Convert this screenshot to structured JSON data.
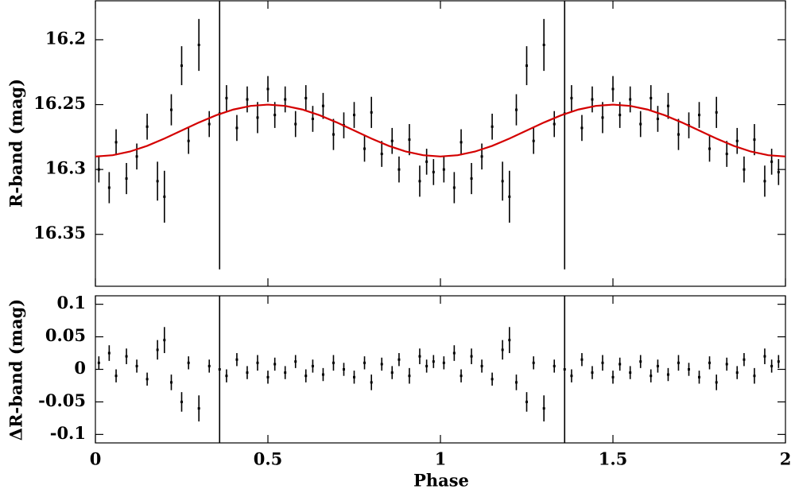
{
  "chart_data": [
    {
      "type": "errorbar",
      "ylabel": "R-band (mag)",
      "invert_y": true,
      "xlim": [
        0,
        2
      ],
      "ylim": [
        16.17,
        16.39
      ],
      "yticks": [
        16.2,
        16.25,
        16.3,
        16.35
      ],
      "color": "#000000",
      "fit_color": "#d40000",
      "x": [
        0.01,
        0.04,
        0.06,
        0.09,
        0.12,
        0.15,
        0.18,
        0.2,
        0.22,
        0.25,
        0.27,
        0.3,
        0.33,
        0.36,
        0.38,
        0.41,
        0.44,
        0.47,
        0.5,
        0.52,
        0.55,
        0.58,
        0.61,
        0.63,
        0.66,
        0.69,
        0.72,
        0.75,
        0.78,
        0.8,
        0.83,
        0.86,
        0.88,
        0.91,
        0.94,
        0.96,
        0.98,
        1.01,
        1.04,
        1.06,
        1.09,
        1.12,
        1.15,
        1.18,
        1.2,
        1.22,
        1.25,
        1.27,
        1.3,
        1.33,
        1.36,
        1.38,
        1.41,
        1.44,
        1.47,
        1.5,
        1.52,
        1.55,
        1.58,
        1.61,
        1.63,
        1.66,
        1.69,
        1.72,
        1.75,
        1.78,
        1.8,
        1.83,
        1.86,
        1.88,
        1.91,
        1.94,
        1.96,
        1.98
      ],
      "values": [
        16.3,
        16.314,
        16.279,
        16.307,
        16.29,
        16.267,
        16.309,
        16.321,
        16.254,
        16.22,
        16.278,
        16.204,
        16.265,
        16.257,
        16.245,
        16.268,
        16.246,
        16.26,
        16.238,
        16.258,
        16.246,
        16.265,
        16.245,
        16.261,
        16.251,
        16.273,
        16.266,
        16.258,
        16.284,
        16.256,
        16.288,
        16.278,
        16.3,
        16.277,
        16.309,
        16.294,
        16.302,
        16.3,
        16.314,
        16.279,
        16.307,
        16.29,
        16.267,
        16.309,
        16.321,
        16.254,
        16.22,
        16.278,
        16.204,
        16.265,
        16.257,
        16.245,
        16.268,
        16.246,
        16.26,
        16.238,
        16.258,
        16.246,
        16.265,
        16.245,
        16.261,
        16.251,
        16.273,
        16.266,
        16.258,
        16.284,
        16.256,
        16.288,
        16.278,
        16.3,
        16.277,
        16.309,
        16.294,
        16.302
      ],
      "errors": [
        0.01,
        0.012,
        0.01,
        0.012,
        0.01,
        0.01,
        0.015,
        0.02,
        0.012,
        0.015,
        0.01,
        0.02,
        0.01,
        0.12,
        0.01,
        0.01,
        0.01,
        0.012,
        0.01,
        0.01,
        0.01,
        0.01,
        0.01,
        0.01,
        0.01,
        0.012,
        0.01,
        0.01,
        0.01,
        0.012,
        0.01,
        0.01,
        0.01,
        0.012,
        0.012,
        0.01,
        0.01,
        0.01,
        0.012,
        0.01,
        0.012,
        0.01,
        0.01,
        0.015,
        0.02,
        0.012,
        0.015,
        0.01,
        0.02,
        0.01,
        0.12,
        0.01,
        0.01,
        0.01,
        0.012,
        0.01,
        0.01,
        0.01,
        0.01,
        0.01,
        0.01,
        0.01,
        0.012,
        0.01,
        0.01,
        0.01,
        0.012,
        0.01,
        0.01,
        0.01,
        0.012,
        0.012,
        0.01,
        0.01
      ],
      "fit_x": [
        0,
        0.05,
        0.1,
        0.15,
        0.2,
        0.25,
        0.3,
        0.35,
        0.4,
        0.45,
        0.5,
        0.55,
        0.6,
        0.65,
        0.7,
        0.75,
        0.8,
        0.85,
        0.9,
        0.95,
        1,
        1.05,
        1.1,
        1.15,
        1.2,
        1.25,
        1.3,
        1.35,
        1.4,
        1.45,
        1.5,
        1.55,
        1.6,
        1.65,
        1.7,
        1.75,
        1.8,
        1.85,
        1.9,
        1.95,
        2
      ],
      "fit_values": [
        16.29,
        16.289,
        16.2862,
        16.2818,
        16.2762,
        16.27,
        16.2638,
        16.2582,
        16.2538,
        16.251,
        16.25,
        16.251,
        16.2538,
        16.2582,
        16.2638,
        16.27,
        16.2762,
        16.2818,
        16.2862,
        16.289,
        16.29,
        16.289,
        16.2862,
        16.2818,
        16.2762,
        16.27,
        16.2638,
        16.2582,
        16.2538,
        16.251,
        16.25,
        16.251,
        16.2538,
        16.2582,
        16.2638,
        16.27,
        16.2762,
        16.2818,
        16.2862,
        16.289,
        16.29
      ]
    },
    {
      "type": "errorbar",
      "ylabel": "ΔR-band (mag)",
      "xlabel": "Phase",
      "xlim": [
        0,
        2
      ],
      "xticks": [
        0,
        0.5,
        1,
        1.5,
        2
      ],
      "ylim": [
        -0.113,
        0.113
      ],
      "yticks": [
        0.1,
        0.05,
        0,
        -0.05,
        -0.1
      ],
      "color": "#000000",
      "x": [
        0.01,
        0.04,
        0.06,
        0.09,
        0.12,
        0.15,
        0.18,
        0.2,
        0.22,
        0.25,
        0.27,
        0.3,
        0.33,
        0.36,
        0.38,
        0.41,
        0.44,
        0.47,
        0.5,
        0.52,
        0.55,
        0.58,
        0.61,
        0.63,
        0.66,
        0.69,
        0.72,
        0.75,
        0.78,
        0.8,
        0.83,
        0.86,
        0.88,
        0.91,
        0.94,
        0.96,
        0.98,
        1.01,
        1.04,
        1.06,
        1.09,
        1.12,
        1.15,
        1.18,
        1.2,
        1.22,
        1.25,
        1.27,
        1.3,
        1.33,
        1.36,
        1.38,
        1.41,
        1.44,
        1.47,
        1.5,
        1.52,
        1.55,
        1.58,
        1.61,
        1.63,
        1.66,
        1.69,
        1.72,
        1.75,
        1.78,
        1.8,
        1.83,
        1.86,
        1.88,
        1.91,
        1.94,
        1.96,
        1.98
      ],
      "values": [
        0.01,
        0.025,
        -0.01,
        0.02,
        0.005,
        -0.015,
        0.03,
        0.045,
        -0.02,
        -0.05,
        0.01,
        -0.06,
        0.005,
        0,
        -0.01,
        0.015,
        -0.005,
        0.01,
        -0.012,
        0.008,
        -0.005,
        0.012,
        -0.01,
        0.005,
        -0.008,
        0.01,
        0,
        -0.012,
        0.01,
        -0.02,
        0.008,
        -0.005,
        0.015,
        -0.01,
        0.02,
        0.005,
        0.012,
        0.01,
        0.025,
        -0.01,
        0.02,
        0.005,
        -0.015,
        0.03,
        0.045,
        -0.02,
        -0.05,
        0.01,
        -0.06,
        0.005,
        0,
        -0.01,
        0.015,
        -0.005,
        0.01,
        -0.012,
        0.008,
        -0.005,
        0.012,
        -0.01,
        0.005,
        -0.008,
        0.01,
        0,
        -0.012,
        0.01,
        -0.02,
        0.008,
        -0.005,
        0.015,
        -0.01,
        0.02,
        0.005,
        0.012
      ],
      "errors": [
        0.01,
        0.012,
        0.01,
        0.012,
        0.01,
        0.01,
        0.015,
        0.02,
        0.012,
        0.015,
        0.01,
        0.02,
        0.01,
        0.12,
        0.01,
        0.01,
        0.01,
        0.012,
        0.01,
        0.01,
        0.01,
        0.01,
        0.01,
        0.01,
        0.01,
        0.012,
        0.01,
        0.01,
        0.01,
        0.012,
        0.01,
        0.01,
        0.01,
        0.012,
        0.012,
        0.01,
        0.01,
        0.01,
        0.012,
        0.01,
        0.012,
        0.01,
        0.01,
        0.015,
        0.02,
        0.012,
        0.015,
        0.01,
        0.02,
        0.01,
        0.12,
        0.01,
        0.01,
        0.01,
        0.012,
        0.01,
        0.01,
        0.01,
        0.01,
        0.01,
        0.01,
        0.01,
        0.012,
        0.01,
        0.01,
        0.01,
        0.012,
        0.01,
        0.01,
        0.01,
        0.012,
        0.012,
        0.01,
        0.01
      ]
    }
  ]
}
